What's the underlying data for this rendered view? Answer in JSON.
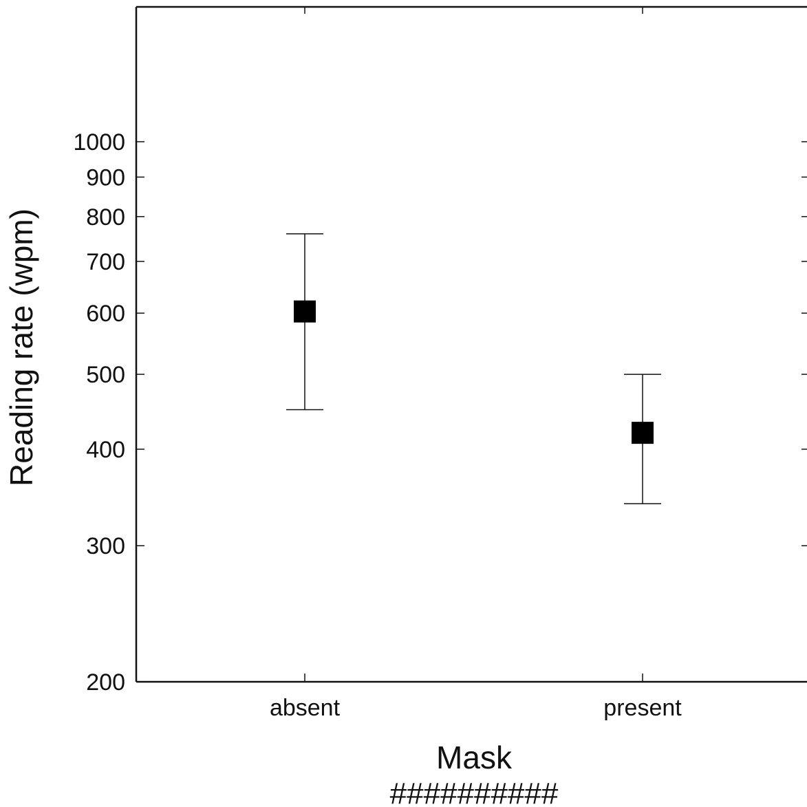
{
  "chart_data": {
    "type": "scatter",
    "xlabel": "Mask",
    "ylabel": "Reading rate (wpm)",
    "x_annotation": "##########",
    "yscale": "log",
    "ylim": [
      200,
      1800
    ],
    "yticks": [
      200,
      300,
      400,
      500,
      600,
      700,
      800,
      900,
      1000
    ],
    "ytick_labels": [
      "200",
      "300",
      "400",
      "500",
      "600",
      "700",
      "800",
      "900",
      "1000"
    ],
    "categories": [
      "absent",
      "present"
    ],
    "series": [
      {
        "values": [
          603,
          420
        ],
        "error_low": [
          450,
          340
        ],
        "error_high": [
          760,
          500
        ],
        "marker": "square",
        "color": "#000000"
      }
    ],
    "grid": false,
    "ticks_on_right_and_top": true
  }
}
